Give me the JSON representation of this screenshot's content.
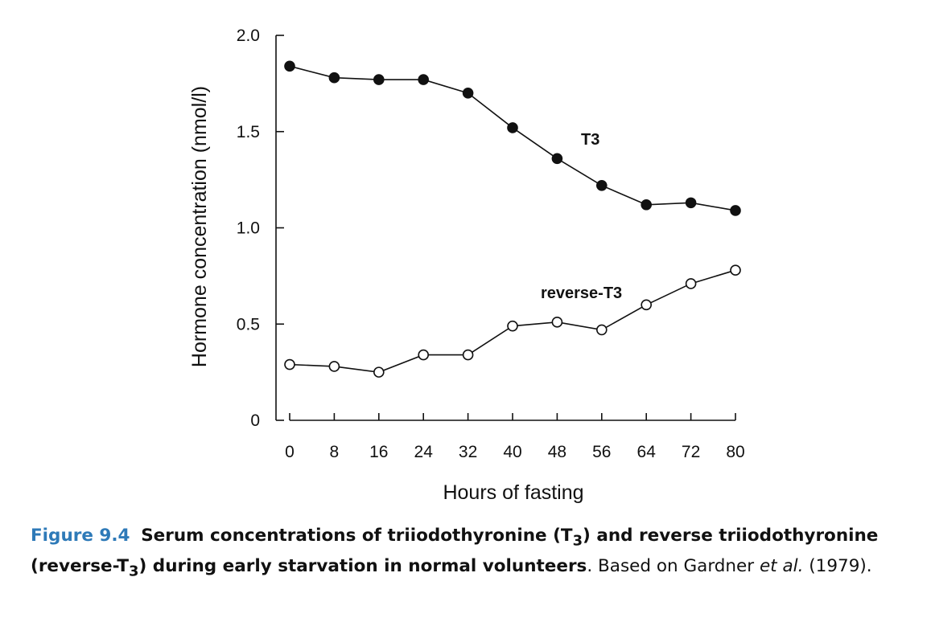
{
  "chart_data": {
    "type": "line",
    "xlabel": "Hours of fasting",
    "ylabel": "Hormone concentration (nmol/l)",
    "x": [
      0,
      8,
      16,
      24,
      32,
      40,
      48,
      56,
      64,
      72,
      80
    ],
    "xticks": [
      "0",
      "8",
      "16",
      "24",
      "32",
      "40",
      "48",
      "56",
      "64",
      "72",
      "80"
    ],
    "yticks": [
      {
        "value": 0,
        "label": "0"
      },
      {
        "value": 0.5,
        "label": "0.5"
      },
      {
        "value": 1.0,
        "label": "1.0"
      },
      {
        "value": 1.5,
        "label": "1.5"
      },
      {
        "value": 2.0,
        "label": "2.0"
      }
    ],
    "xlim": [
      0,
      80
    ],
    "ylim": [
      0,
      2.0
    ],
    "grid": false,
    "series": [
      {
        "name": "T3",
        "marker": "filled-circle",
        "color": "#111111",
        "values": [
          1.84,
          1.78,
          1.77,
          1.77,
          1.7,
          1.52,
          1.36,
          1.22,
          1.12,
          1.13,
          1.09
        ]
      },
      {
        "name": "reverse-T3",
        "marker": "open-circle",
        "color": "#111111",
        "values": [
          0.29,
          0.28,
          0.25,
          0.34,
          0.34,
          0.49,
          0.51,
          0.47,
          0.6,
          0.71,
          0.78
        ]
      }
    ]
  },
  "caption": {
    "figure_number": "Figure 9.4",
    "title_part1": "Serum concentrations of triiodothyronine (T",
    "sub1": "3",
    "title_part2": ") and reverse triiodothyronine (reverse-T",
    "sub2": "3",
    "title_part3": ") during early starvation in normal volunteers",
    "source_part1": ". Based on Gardner ",
    "source_etal": "et al.",
    "source_part2": " (1979)."
  }
}
